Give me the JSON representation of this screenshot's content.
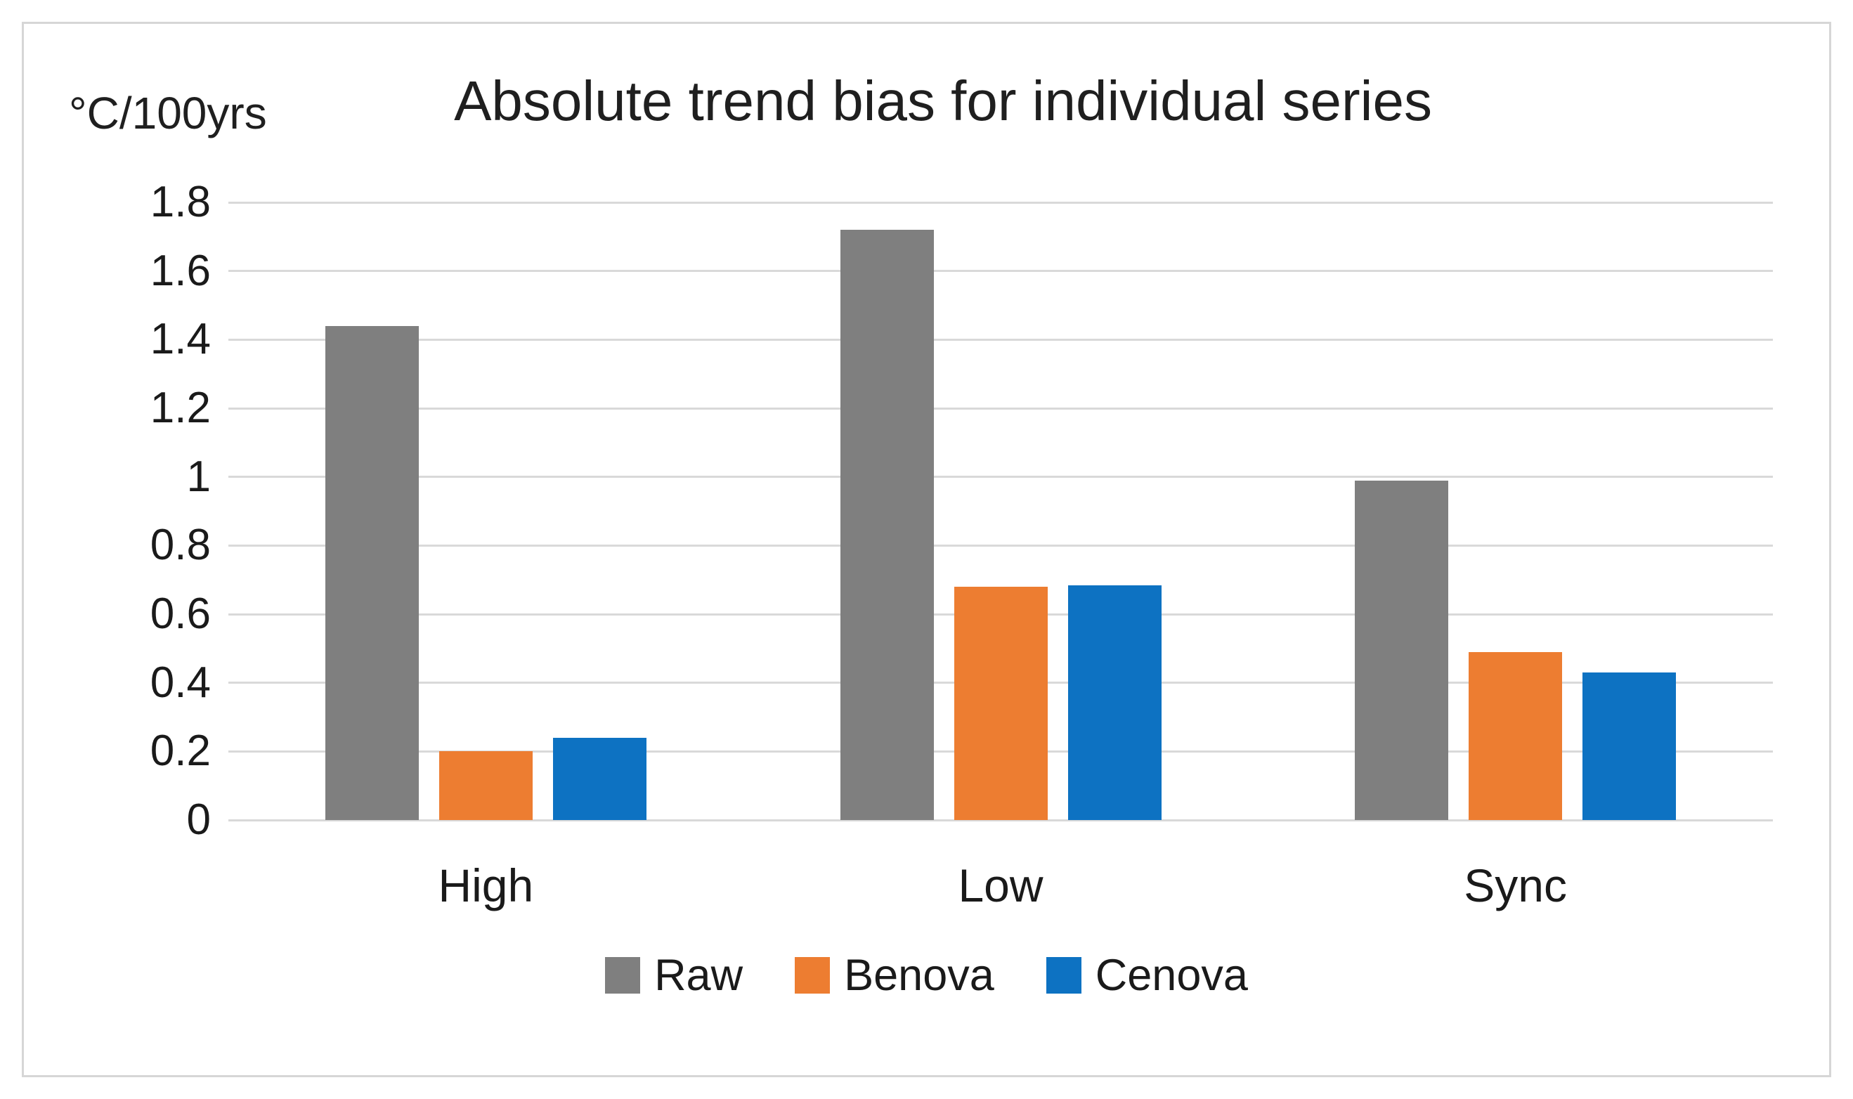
{
  "chart_data": {
    "type": "bar",
    "title": "Absolute trend bias for individual series",
    "unit_label": "°C/100yrs",
    "xlabel": "",
    "ylabel": "°C/100yrs",
    "categories": [
      "High",
      "Low",
      "Sync"
    ],
    "series": [
      {
        "name": "Raw",
        "color": "#7f7f7f",
        "values": [
          1.44,
          1.72,
          0.99
        ]
      },
      {
        "name": "Benova",
        "color": "#ed7d31",
        "values": [
          0.2,
          0.68,
          0.49
        ]
      },
      {
        "name": "Cenova",
        "color": "#0d72c2",
        "values": [
          0.24,
          0.685,
          0.43
        ]
      }
    ],
    "ylim": [
      0,
      1.8
    ],
    "ytick_values": [
      0,
      0.2,
      0.4,
      0.6,
      0.8,
      1,
      1.2,
      1.4,
      1.6,
      1.8
    ],
    "ytick_labels": [
      "0",
      "0.2",
      "0.4",
      "0.6",
      "0.8",
      "1",
      "1.2",
      "1.4",
      "1.6",
      "1.8"
    ],
    "grid": true,
    "legend_position": "bottom",
    "legend_entries": [
      "Raw",
      "Benova",
      "Cenova"
    ],
    "colors": {
      "gridline": "#d9d9d9",
      "axis_text": "#1a1a1a",
      "title_text": "#1f1f1f",
      "frame_border": "#d6d6d6",
      "background": "#ffffff"
    }
  }
}
